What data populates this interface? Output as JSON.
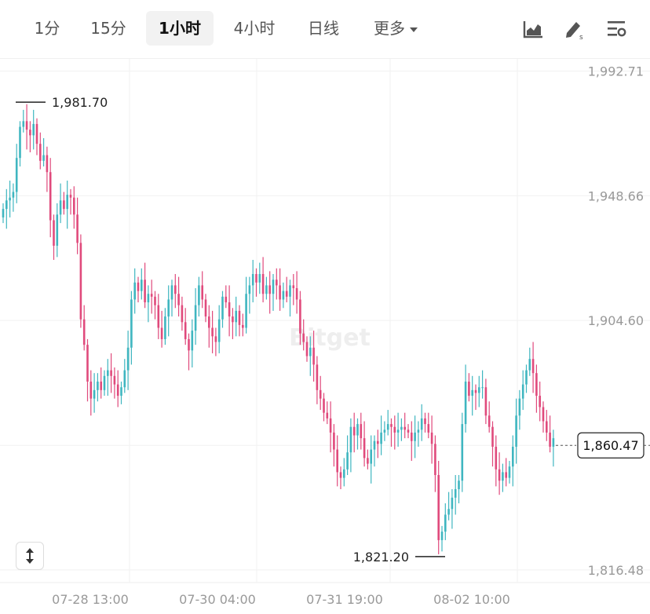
{
  "toolbar": {
    "tabs": [
      {
        "label": "1分",
        "active": false
      },
      {
        "label": "15分",
        "active": false
      },
      {
        "label": "1小时",
        "active": true
      },
      {
        "label": "4小时",
        "active": false
      },
      {
        "label": "日线",
        "active": false
      },
      {
        "label": "更多",
        "active": false
      }
    ],
    "tools": [
      "area-chart-icon",
      "pen-draw-icon",
      "settings-sliders-icon"
    ]
  },
  "watermark": "Bitget",
  "colors": {
    "up": "#3fb6c0",
    "down": "#e04a7c",
    "grid": "#f1f1f1",
    "text": "#999999"
  },
  "chart_data": {
    "type": "candlestick",
    "interval": "1小时",
    "y_ticks": [
      "1,992.71",
      "1,948.66",
      "1,904.60",
      "1,816.48"
    ],
    "y_tick_values": [
      1992.71,
      1948.66,
      1904.6,
      1816.48
    ],
    "ylim": [
      1812,
      1997
    ],
    "x_ticks": [
      "07-28 13:00",
      "07-30 04:00",
      "07-31 19:00",
      "08-02 10:00"
    ],
    "high_marker": {
      "label": "1,981.70",
      "value": 1981.7
    },
    "low_marker": {
      "label": "1,821.20",
      "value": 1821.2
    },
    "last_price": {
      "label": "1,860.47",
      "value": 1860.47
    },
    "closes": [
      1944,
      1947,
      1948,
      1950,
      1962,
      1973,
      1975,
      1972,
      1970,
      1974,
      1967,
      1961,
      1963,
      1957,
      1940,
      1931,
      1942,
      1947,
      1944,
      1949,
      1948,
      1942,
      1932,
      1905,
      1896,
      1883,
      1877,
      1880,
      1883,
      1880,
      1885,
      1887,
      1885,
      1882,
      1878,
      1881,
      1887,
      1895,
      1912,
      1918,
      1915,
      1919,
      1911,
      1914,
      1913,
      1910,
      1902,
      1898,
      1906,
      1912,
      1917,
      1914,
      1910,
      1904,
      1898,
      1894,
      1901,
      1910,
      1917,
      1912,
      1906,
      1902,
      1899,
      1897,
      1905,
      1913,
      1911,
      1906,
      1904,
      1908,
      1903,
      1902,
      1914,
      1917,
      1921,
      1918,
      1921,
      1914,
      1917,
      1914,
      1919,
      1917,
      1912,
      1915,
      1913,
      1917,
      1916,
      1912,
      1900,
      1897,
      1892,
      1895,
      1889,
      1880,
      1877,
      1872,
      1870,
      1865,
      1859,
      1851,
      1849,
      1852,
      1858,
      1867,
      1864,
      1868,
      1863,
      1856,
      1854,
      1859,
      1862,
      1861,
      1865,
      1866,
      1868,
      1867,
      1865,
      1866,
      1867,
      1866,
      1865,
      1862,
      1865,
      1866,
      1870,
      1868,
      1865,
      1861,
      1850,
      1827,
      1830,
      1836,
      1838,
      1842,
      1845,
      1848,
      1868,
      1883,
      1878,
      1880,
      1879,
      1881,
      1881,
      1871,
      1867,
      1860,
      1852,
      1848,
      1851,
      1849,
      1853,
      1860,
      1871,
      1877,
      1882,
      1887,
      1891,
      1886,
      1878,
      1874,
      1869,
      1865,
      1860,
      1863
    ]
  }
}
